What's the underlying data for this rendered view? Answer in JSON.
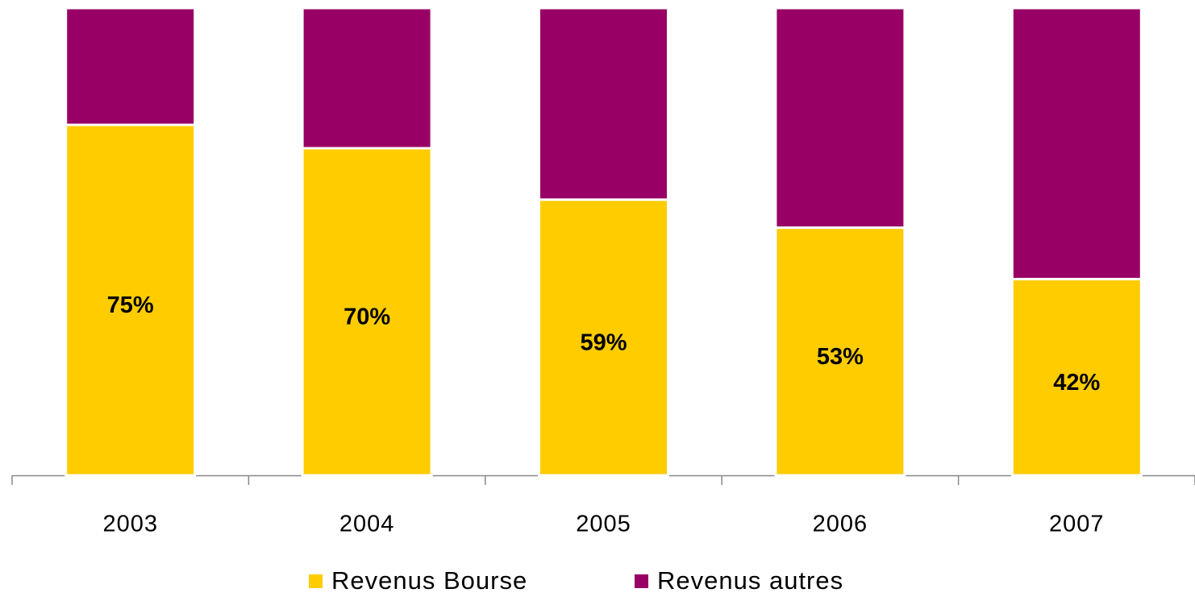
{
  "chart_data": {
    "type": "stacked_bar",
    "categories": [
      "2003",
      "2004",
      "2005",
      "2006",
      "2007"
    ],
    "series": [
      {
        "name": "Revenus Bourse",
        "color": "#ffcc00",
        "values": [
          75,
          70,
          59,
          53,
          42
        ],
        "value_labels": [
          "75%",
          "70%",
          "59%",
          "53%",
          "42%"
        ]
      },
      {
        "name": "Revenus autres",
        "color": "#990066",
        "values": [
          25,
          30,
          41,
          47,
          58
        ]
      }
    ],
    "ylim": [
      0,
      100
    ],
    "legend": "bottom"
  }
}
